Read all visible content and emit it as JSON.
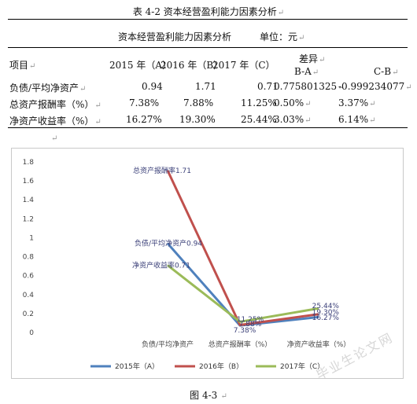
{
  "caption": "表 4-2  资本经营盈利能力因素分析",
  "table": {
    "subtitle": "资本经营盈利能力因素分析",
    "unit": "单位：元",
    "diff_header": "差异",
    "item_header": "项目",
    "col_2015": "2015 年（A）",
    "col_2016": "2016 年（B）",
    "col_2017": "2017 年（C）",
    "col_ba": "B-A",
    "col_cb": "C-B",
    "rows": [
      {
        "label": "负债/平均净资产",
        "a": "0.94",
        "b": "1.71",
        "c": "0.71",
        "ba": "0.775801325",
        "cb": "-0.999234077"
      },
      {
        "label": "总资产报酬率（%）",
        "a": "7.38%",
        "b": "7.88%",
        "c": "11.25%",
        "ba": "0.50%",
        "cb": "3.37%"
      },
      {
        "label": "净资产收益率（%）",
        "a": "16.27%",
        "b": "19.30%",
        "c": "25.44%",
        "ba": "3.03%",
        "cb": "6.14%"
      }
    ]
  },
  "chart_data": {
    "type": "line",
    "categories": [
      "负债/平均净资产",
      "总资产报酬率（%）",
      "净资产收益率（%）"
    ],
    "ylim": [
      0,
      1.8
    ],
    "yticks": [
      "0",
      "0.2",
      "0.4",
      "0.6",
      "0.8",
      "1",
      "1.2",
      "1.4",
      "1.6",
      "1.8"
    ],
    "series": [
      {
        "name": "2015年（A）",
        "color": "#4f81bd",
        "values": [
          0.94,
          0.0738,
          0.1627
        ],
        "labels": [
          "负债/平均净资产0.94",
          "7.38%",
          "16.27%"
        ]
      },
      {
        "name": "2016年（B）",
        "color": "#c0504d",
        "values": [
          1.71,
          0.0788,
          0.193
        ],
        "labels": [
          "总资产报酬率1.71",
          "7.88%",
          "19.30%"
        ]
      },
      {
        "name": "2017年（C）",
        "color": "#9bbb59",
        "values": [
          0.71,
          0.1125,
          0.2544
        ],
        "labels": [
          "净资产收益率0.71",
          "11.25%",
          "25.44%"
        ]
      }
    ]
  },
  "figure_caption": "图 4-3",
  "watermark": "毕业生论文网"
}
